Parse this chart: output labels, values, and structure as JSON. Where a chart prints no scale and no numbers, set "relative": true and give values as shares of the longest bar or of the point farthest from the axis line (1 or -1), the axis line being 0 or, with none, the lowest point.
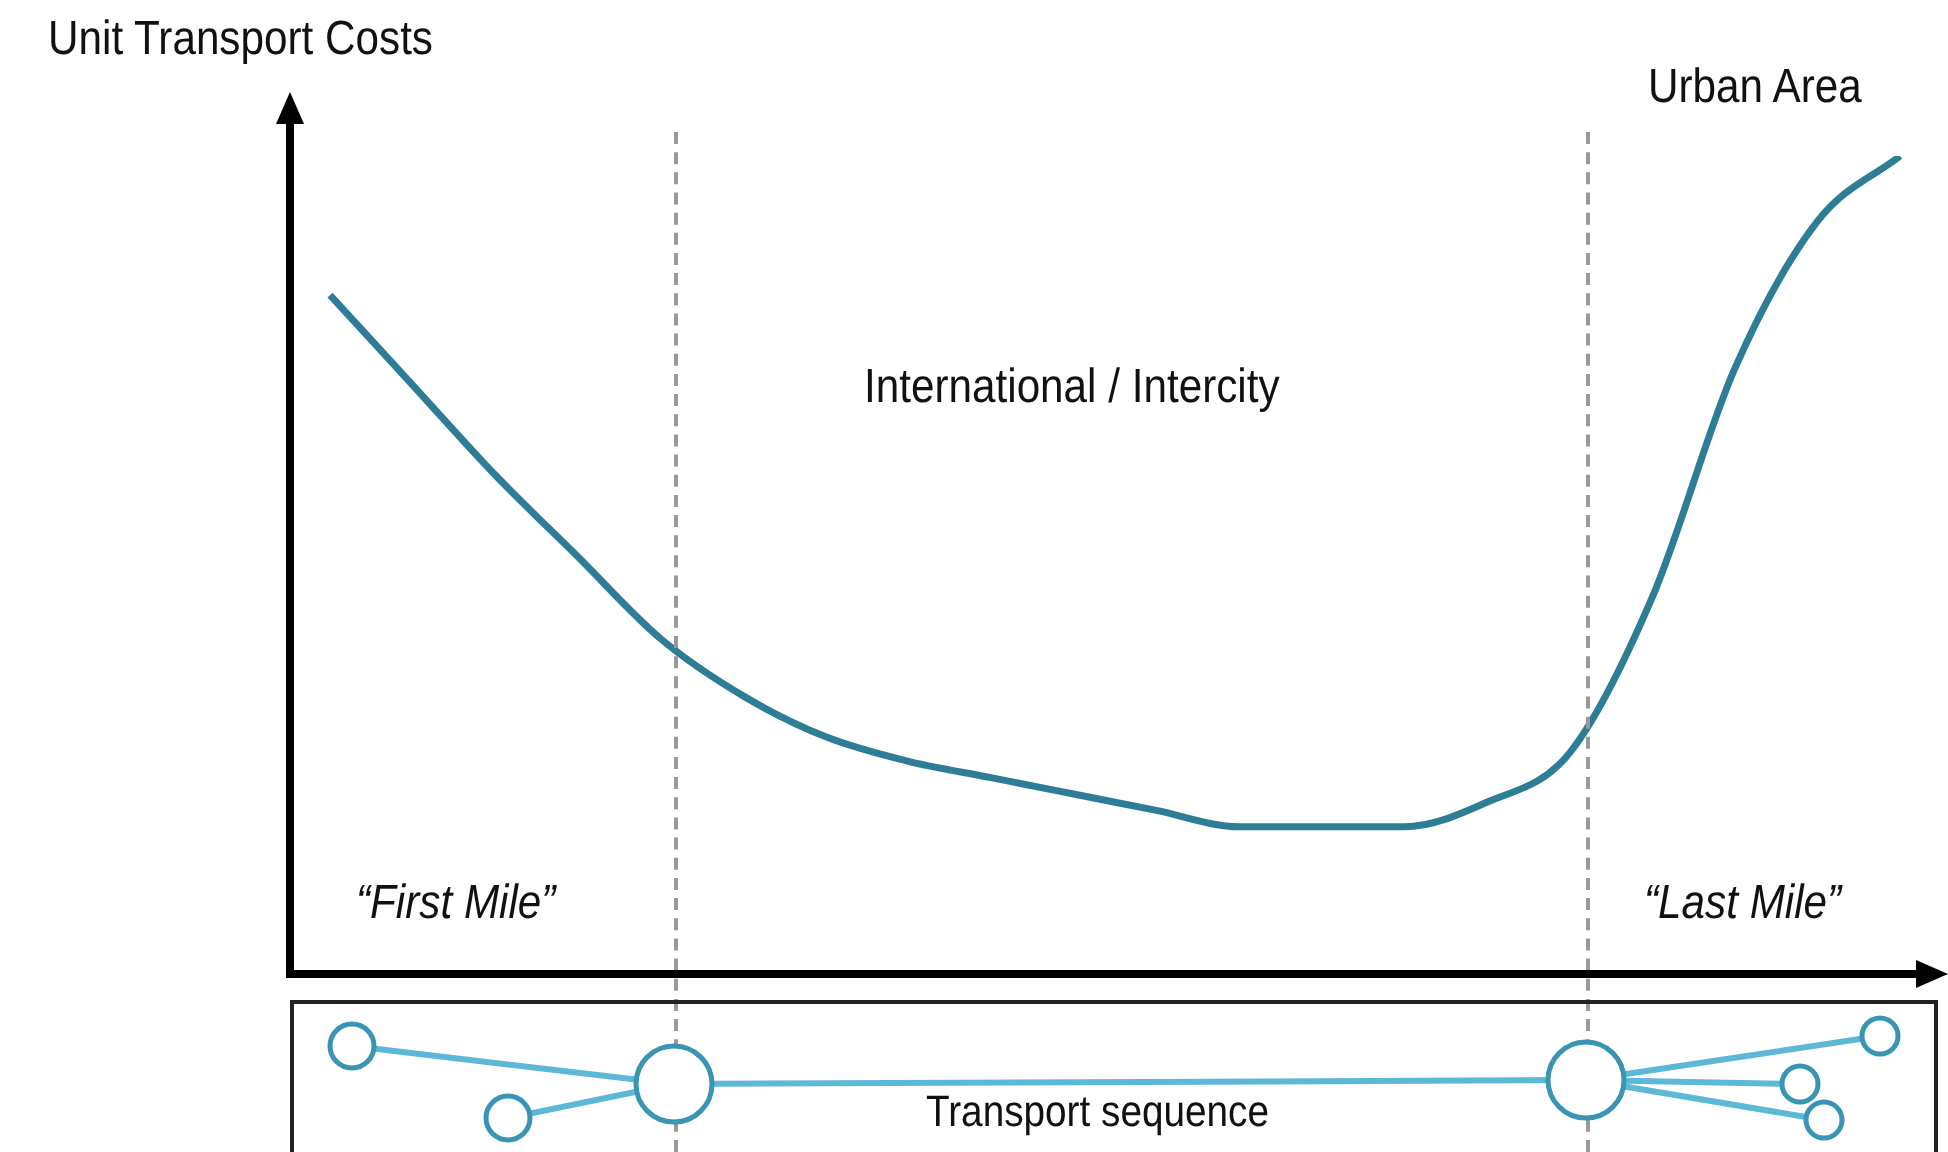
{
  "chart_data": {
    "type": "line",
    "relative": true,
    "title": "Unit Transport Costs",
    "legend": false,
    "marker": "none",
    "line_style": "solid",
    "categories": [
      null,
      null,
      null,
      null,
      null,
      null,
      null,
      null,
      null,
      null,
      null,
      null,
      null,
      null,
      null,
      null,
      null,
      null,
      null,
      null
    ],
    "series": [
      {
        "color": "#2e7d96",
        "values": [
          0.83,
          0.72,
          0.61,
          0.51,
          0.41,
          0.34,
          0.29,
          0.26,
          0.24,
          0.22,
          0.2,
          0.18,
          0.18,
          0.18,
          0.21,
          0.27,
          0.46,
          0.74,
          0.92,
          1
        ]
      }
    ],
    "annotations": [
      "Urban Area",
      "International / Intercity",
      "“First Mile”",
      "“Last Mile”",
      "Transport sequence"
    ]
  }
}
